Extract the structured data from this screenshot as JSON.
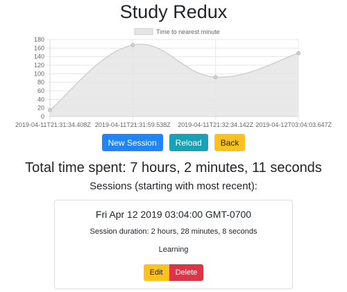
{
  "app": {
    "title": "Study Redux"
  },
  "chart_data": {
    "type": "area",
    "legend": {
      "label": "Time to nearest minute",
      "position": "top"
    },
    "x": [
      "2019-04-11T21:31:34.408Z",
      "2019-04-11T21:31:59.538Z",
      "2019-04-11T21:32:34.142Z",
      "2019-04-12T03:04:03.647Z"
    ],
    "series": [
      {
        "name": "Time to nearest minute",
        "values": [
          15,
          167,
          92,
          148
        ]
      }
    ],
    "ylim": [
      0,
      180
    ],
    "yticks": [
      0,
      20,
      40,
      60,
      80,
      100,
      120,
      140,
      160,
      180
    ],
    "grid": true,
    "colors": {
      "fill": "#e5e5e5",
      "line": "#d0d0d0",
      "grid": "#e6e6e6"
    }
  },
  "toolbar": {
    "new_session": "New Session",
    "reload": "Reload",
    "back": "Back"
  },
  "summary": {
    "total_time": "Total time spent: 7 hours, 2 minutes, 11 seconds",
    "sessions_heading": "Sessions (starting with most recent):"
  },
  "sessions": [
    {
      "date": "Fri Apr 12 2019 03:04:00 GMT-0700",
      "duration": "Session duration: 2 hours, 28 minutes, 8 seconds",
      "activity": "Learning",
      "edit_label": "Edit",
      "delete_label": "Delete"
    }
  ],
  "colors": {
    "primary": "#1f85ff",
    "info": "#17a2b8",
    "warning": "#ffc21c",
    "danger": "#dc3545"
  }
}
